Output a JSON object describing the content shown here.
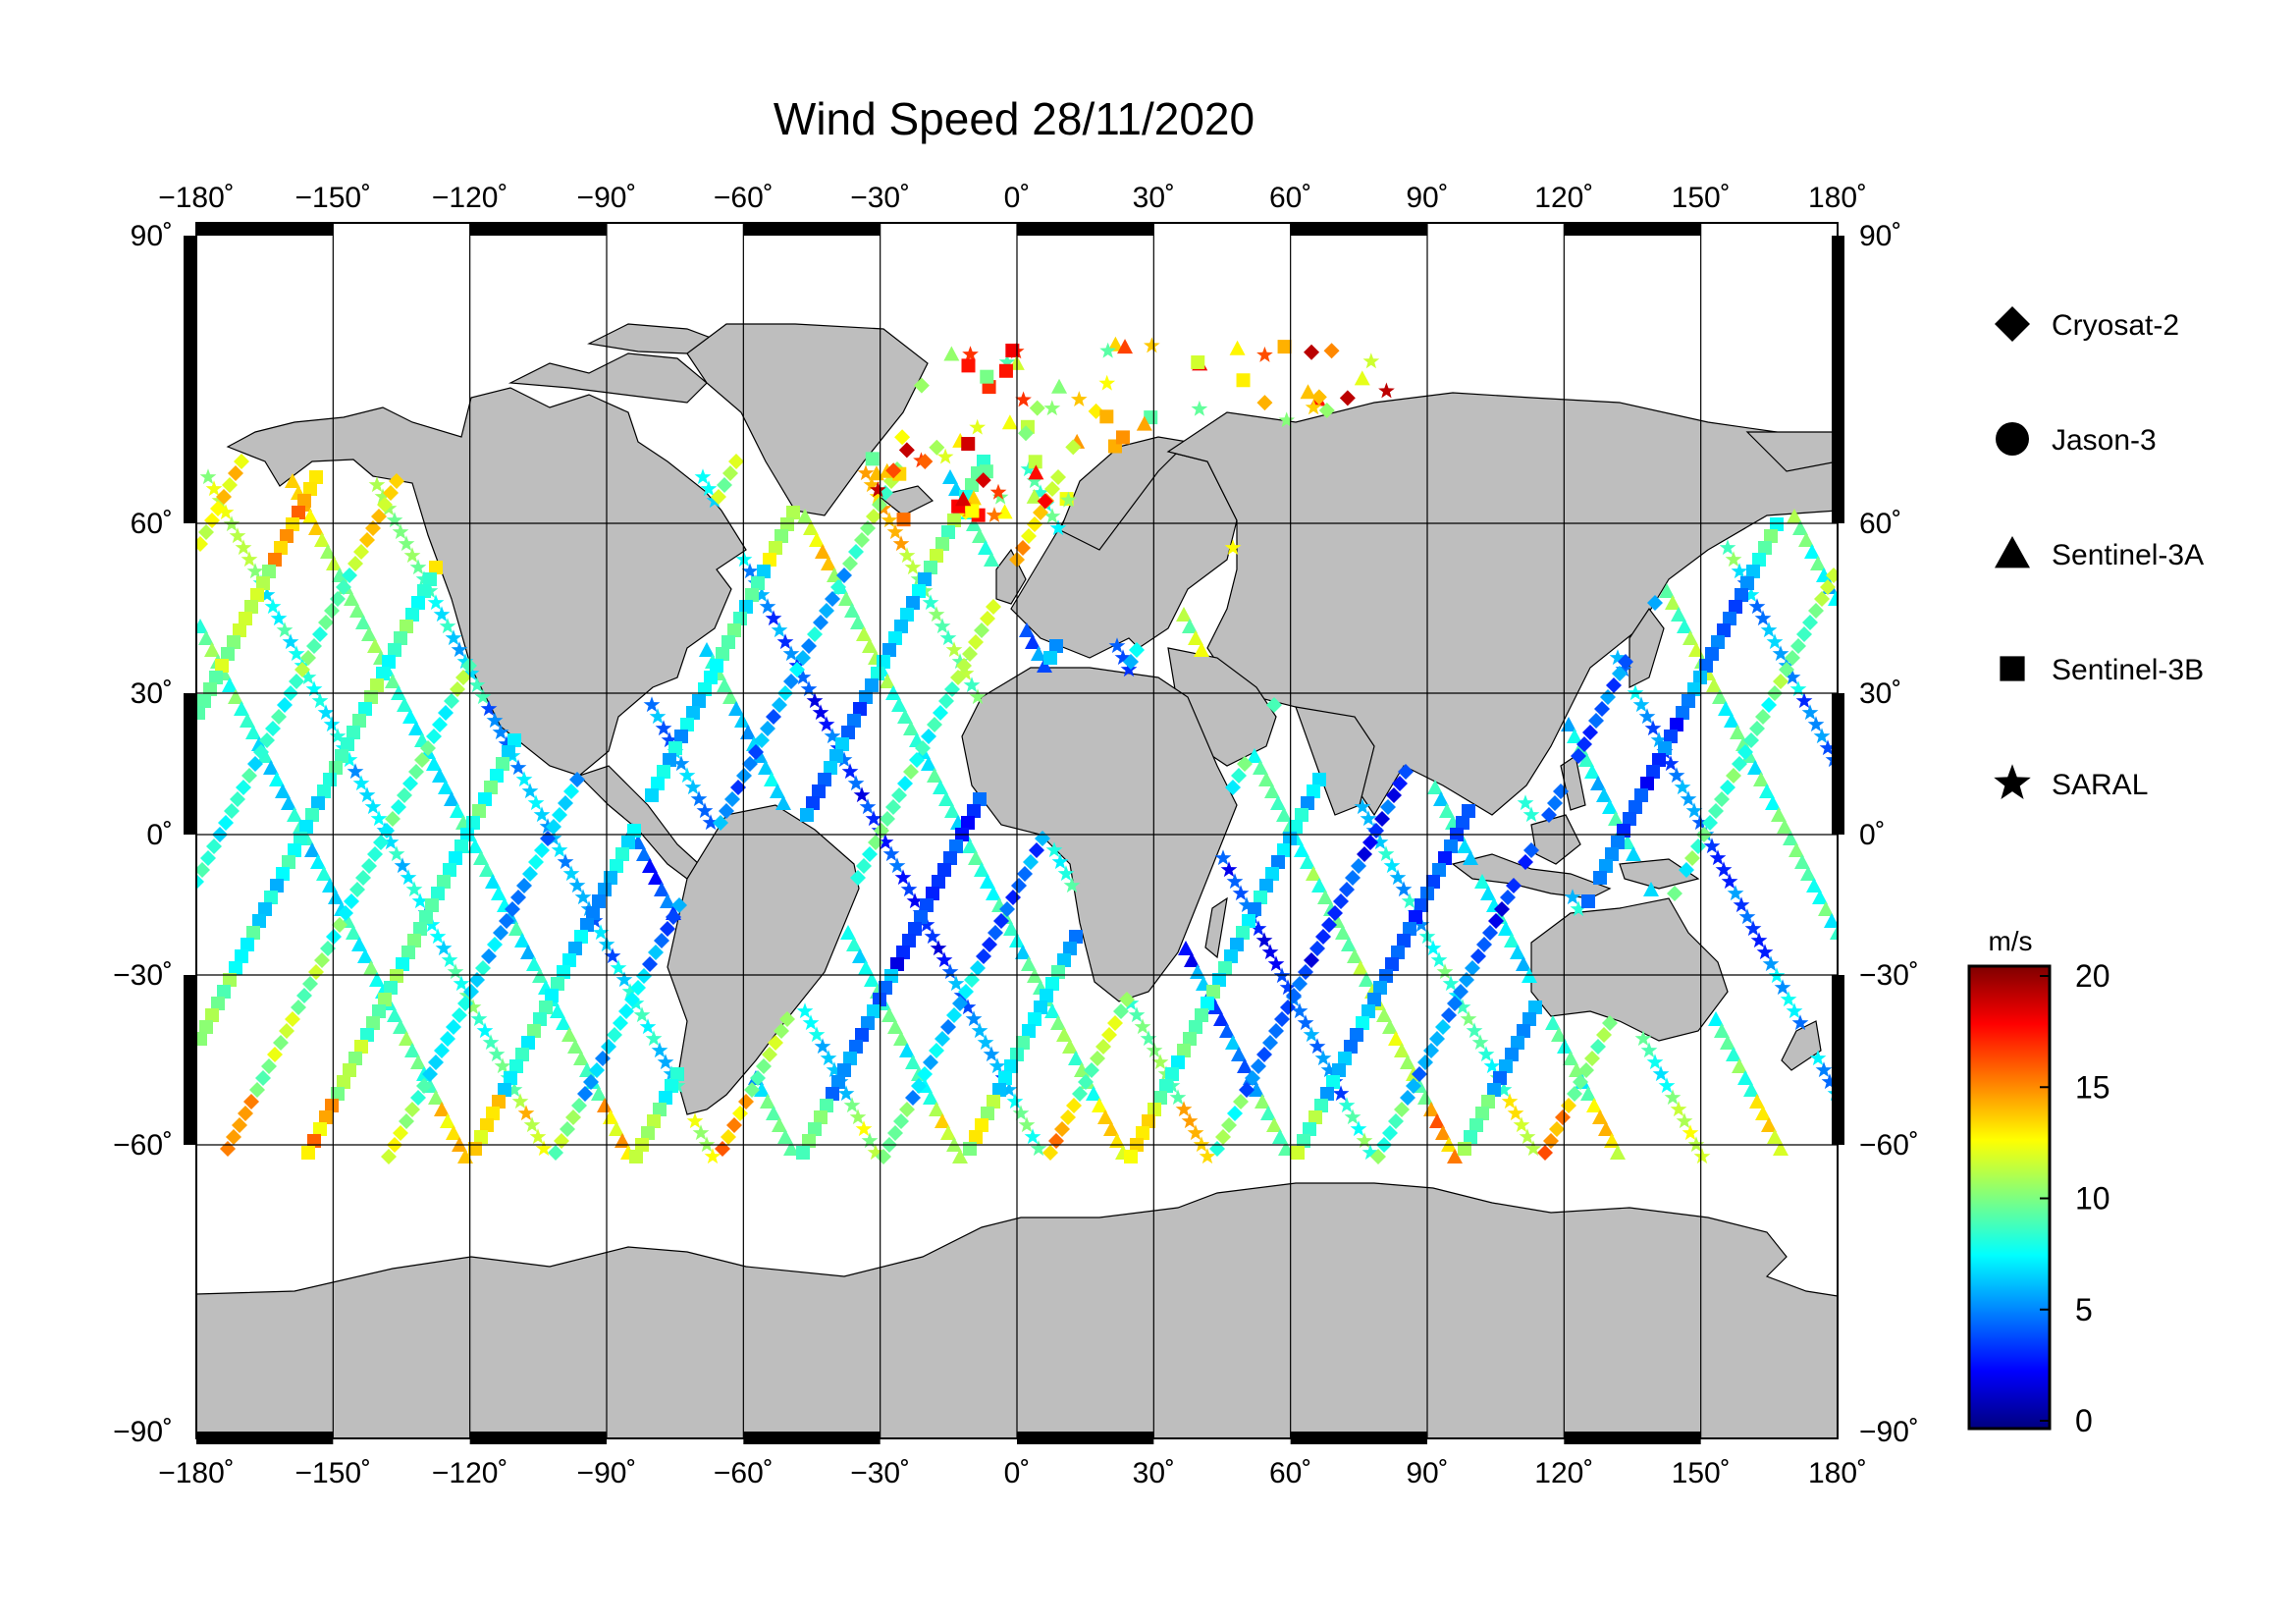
{
  "title": "Wind Speed 28/11/2020",
  "longitude_ticks": [
    "−180˚",
    "−150˚",
    "−120˚",
    "−90˚",
    "−60˚",
    "−30˚",
    "0˚",
    "30˚",
    "60˚",
    "90˚",
    "120˚",
    "150˚",
    "180˚"
  ],
  "latitude_ticks": [
    "90˚",
    "60˚",
    "30˚",
    "0˚",
    "−30˚",
    "−60˚",
    "−90˚"
  ],
  "legend": [
    {
      "label": "Cryosat-2",
      "symbol": "diamond"
    },
    {
      "label": "Jason-3",
      "symbol": "circle"
    },
    {
      "label": "Sentinel-3A",
      "symbol": "triangle"
    },
    {
      "label": "Sentinel-3B",
      "symbol": "square"
    },
    {
      "label": "SARAL",
      "symbol": "star"
    }
  ],
  "colorbar": {
    "unit": "m/s",
    "ticks": [
      "20",
      "15",
      "10",
      "5",
      "0"
    ],
    "range": [
      0,
      20
    ],
    "colors": [
      "#00007f",
      "#0000ff",
      "#007fff",
      "#00ffff",
      "#7fff7f",
      "#ffff00",
      "#ff7f00",
      "#ff0000",
      "#7f0000"
    ]
  },
  "land_color": "#bebebe",
  "ocean_color": "#ffffff"
}
